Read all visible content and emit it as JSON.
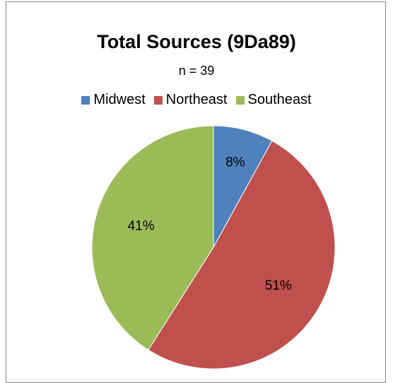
{
  "chart_data": {
    "type": "pie",
    "title": "Total Sources (9Da89)",
    "subtitle": "n = 39",
    "legend_placement": "top",
    "slices": [
      {
        "label": "Midwest",
        "value": 8,
        "display": "8%",
        "color": "#4F81BD"
      },
      {
        "label": "Northeast",
        "value": 51,
        "display": "51%",
        "color": "#C0504D"
      },
      {
        "label": "Southeast",
        "value": 41,
        "display": "41%",
        "color": "#9BBB59"
      }
    ]
  }
}
